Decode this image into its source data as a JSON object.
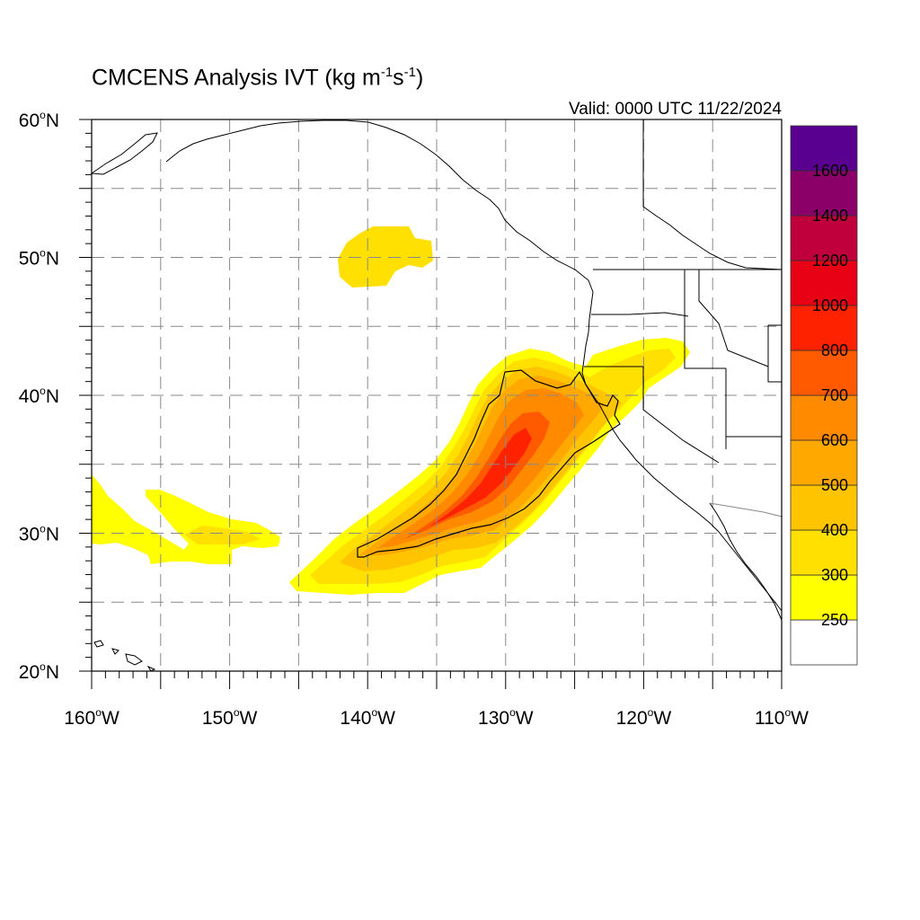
{
  "title": {
    "text_prefix": "CMCENS Analysis IVT (kg m",
    "sup1": "-1",
    "mid": "s",
    "sup2": "-1",
    "suffix": ")"
  },
  "valid_text": "Valid: 0000 UTC 11/22/2024",
  "map": {
    "lon_range": [
      -160,
      -110
    ],
    "lat_range": [
      20,
      60
    ],
    "lat_ticks": [
      {
        "value": 60,
        "label": "60",
        "suffix": "N"
      },
      {
        "value": 50,
        "label": "50",
        "suffix": "N"
      },
      {
        "value": 40,
        "label": "40",
        "suffix": "N"
      },
      {
        "value": 30,
        "label": "30",
        "suffix": "N"
      },
      {
        "value": 20,
        "label": "20",
        "suffix": "N"
      }
    ],
    "lon_ticks": [
      {
        "value": -160,
        "label": "160",
        "suffix": "W"
      },
      {
        "value": -150,
        "label": "150",
        "suffix": "W"
      },
      {
        "value": -140,
        "label": "140",
        "suffix": "W"
      },
      {
        "value": -130,
        "label": "130",
        "suffix": "W"
      },
      {
        "value": -120,
        "label": "120",
        "suffix": "W"
      },
      {
        "value": -110,
        "label": "110",
        "suffix": "W"
      }
    ],
    "gridline_style": "dashed"
  },
  "colorbar": {
    "levels": [
      250,
      300,
      400,
      500,
      600,
      700,
      800,
      1000,
      1200,
      1400,
      1600
    ],
    "labels": [
      "250",
      "300",
      "400",
      "500",
      "600",
      "700",
      "800",
      "1000",
      "1200",
      "1400",
      "1600"
    ],
    "colors": [
      "#ffffff",
      "#ffff00",
      "#ffe000",
      "#ffc400",
      "#ffa800",
      "#ff8a00",
      "#ff5a00",
      "#ff2200",
      "#e80014",
      "#c0003c",
      "#8a0068",
      "#5a0090"
    ]
  }
}
